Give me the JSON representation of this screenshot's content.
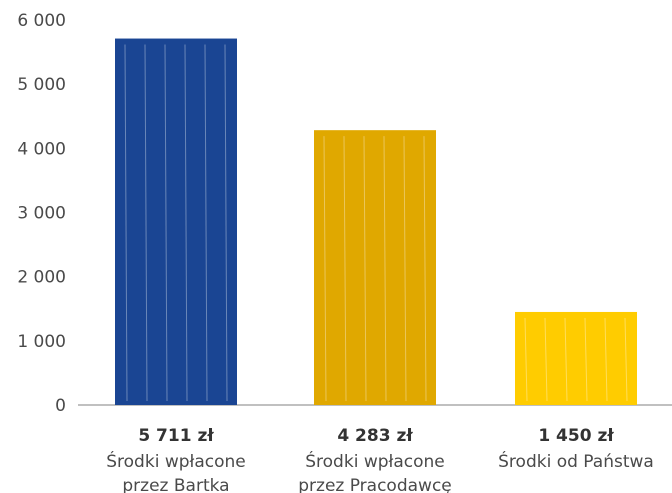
{
  "chart_data": {
    "type": "bar",
    "categories": [
      [
        "Środki wpłacone",
        "przez Bartka"
      ],
      [
        "Środki wpłacone",
        "przez Pracodawcę"
      ],
      [
        "Środki od Państwa"
      ]
    ],
    "values": [
      5711,
      4283,
      1450
    ],
    "value_labels": [
      "5 711 zł",
      "4 283 zł",
      "1 450 zł"
    ],
    "colors": [
      "#1a4593",
      "#e0a800",
      "#ffcc00"
    ],
    "ylim": [
      0,
      6000
    ],
    "yticks": [
      0,
      1000,
      2000,
      3000,
      4000,
      5000,
      6000
    ],
    "ytick_labels": [
      "0",
      "1 000",
      "2 000",
      "3 000",
      "4 000",
      "5 000",
      "6 000"
    ],
    "grid": false,
    "title": "",
    "xlabel": "",
    "ylabel": ""
  }
}
